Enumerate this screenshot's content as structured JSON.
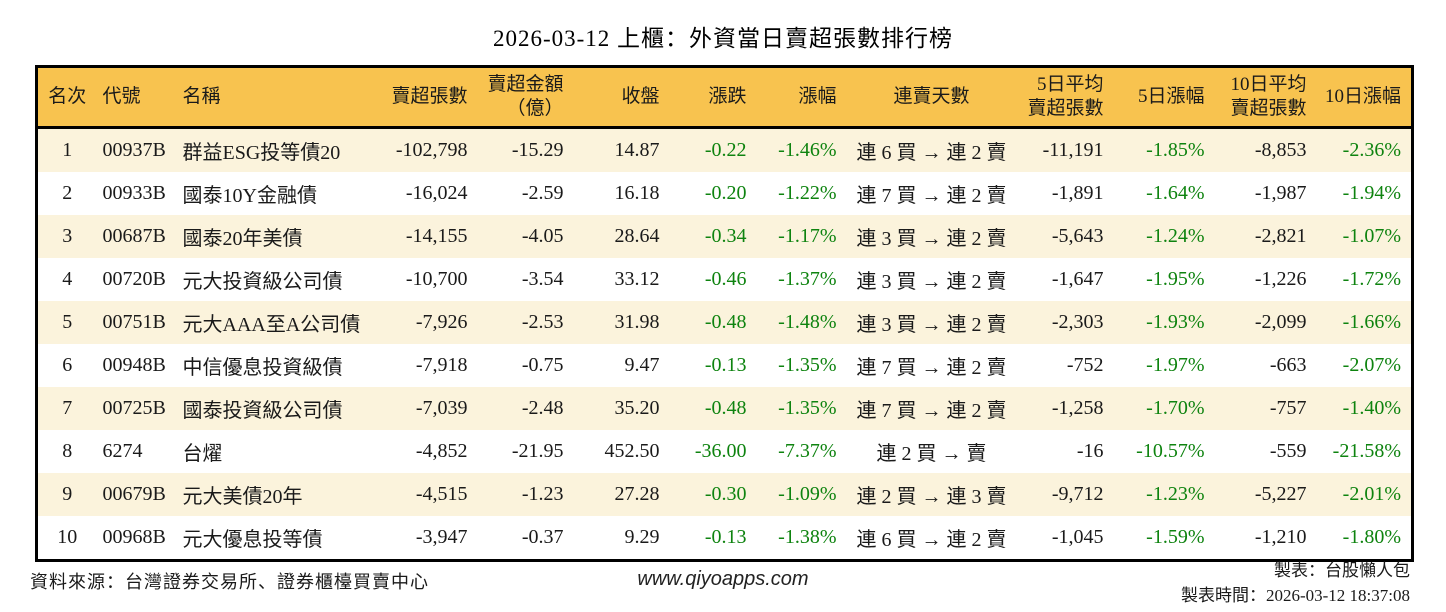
{
  "title": "2026-03-12 上櫃：外資當日賣超張數排行榜",
  "colors": {
    "header_bg": "#F8C34F",
    "row_alt_bg": "#FBF3DC",
    "negative_green": "#0E830F",
    "border": "#000000"
  },
  "chart_data": {
    "type": "table",
    "title": "2026-03-12 上櫃：外資當日賣超張數排行榜",
    "columns": [
      "名次",
      "代號",
      "名稱",
      "賣超張數",
      "賣超金額（億）",
      "收盤",
      "漲跌",
      "漲幅",
      "連賣天數",
      "5日平均賣超張數",
      "5日漲幅",
      "10日平均賣超張數",
      "10日漲幅"
    ],
    "column_lines": [
      [
        "名次"
      ],
      [
        "代號"
      ],
      [
        "名稱"
      ],
      [
        "賣超張數"
      ],
      [
        "賣超金額",
        "（億）"
      ],
      [
        "收盤"
      ],
      [
        "漲跌"
      ],
      [
        "漲幅"
      ],
      [
        "連賣天數"
      ],
      [
        "5日平均",
        "賣超張數"
      ],
      [
        "5日漲幅"
      ],
      [
        "10日平均",
        "賣超張數"
      ],
      [
        "10日漲幅"
      ]
    ],
    "rows": [
      [
        "1",
        "00937B",
        "群益ESG投等債20",
        "-102,798",
        "-15.29",
        "14.87",
        "-0.22",
        "-1.46%",
        "連 6 買 → 連 2 賣",
        "-11,191",
        "-1.85%",
        "-8,853",
        "-2.36%"
      ],
      [
        "2",
        "00933B",
        "國泰10Y金融債",
        "-16,024",
        "-2.59",
        "16.18",
        "-0.20",
        "-1.22%",
        "連 7 買 → 連 2 賣",
        "-1,891",
        "-1.64%",
        "-1,987",
        "-1.94%"
      ],
      [
        "3",
        "00687B",
        "國泰20年美債",
        "-14,155",
        "-4.05",
        "28.64",
        "-0.34",
        "-1.17%",
        "連 3 買 → 連 2 賣",
        "-5,643",
        "-1.24%",
        "-2,821",
        "-1.07%"
      ],
      [
        "4",
        "00720B",
        "元大投資級公司債",
        "-10,700",
        "-3.54",
        "33.12",
        "-0.46",
        "-1.37%",
        "連 3 買 → 連 2 賣",
        "-1,647",
        "-1.95%",
        "-1,226",
        "-1.72%"
      ],
      [
        "5",
        "00751B",
        "元大AAA至A公司債",
        "-7,926",
        "-2.53",
        "31.98",
        "-0.48",
        "-1.48%",
        "連 3 買 → 連 2 賣",
        "-2,303",
        "-1.93%",
        "-2,099",
        "-1.66%"
      ],
      [
        "6",
        "00948B",
        "中信優息投資級債",
        "-7,918",
        "-0.75",
        "9.47",
        "-0.13",
        "-1.35%",
        "連 7 買 → 連 2 賣",
        "-752",
        "-1.97%",
        "-663",
        "-2.07%"
      ],
      [
        "7",
        "00725B",
        "國泰投資級公司債",
        "-7,039",
        "-2.48",
        "35.20",
        "-0.48",
        "-1.35%",
        "連 7 買 → 連 2 賣",
        "-1,258",
        "-1.70%",
        "-757",
        "-1.40%"
      ],
      [
        "8",
        "6274",
        "台燿",
        "-4,852",
        "-21.95",
        "452.50",
        "-36.00",
        "-7.37%",
        "連 2 買 → 賣",
        "-16",
        "-10.57%",
        "-559",
        "-21.58%"
      ],
      [
        "9",
        "00679B",
        "元大美債20年",
        "-4,515",
        "-1.23",
        "27.28",
        "-0.30",
        "-1.09%",
        "連 2 買 → 連 3 賣",
        "-9,712",
        "-1.23%",
        "-5,227",
        "-2.01%"
      ],
      [
        "10",
        "00968B",
        "元大優息投等債",
        "-3,947",
        "-0.37",
        "9.29",
        "-0.13",
        "-1.38%",
        "連 6 買 → 連 2 賣",
        "-1,045",
        "-1.59%",
        "-1,210",
        "-1.80%"
      ]
    ]
  },
  "footer": {
    "source": "資料來源：台灣證券交易所、證券櫃檯買賣中心",
    "website": "www.qiyoapps.com",
    "maker": "製表：台股懶人包",
    "made_at": "製表時間：2026-03-12 18:37:08"
  }
}
